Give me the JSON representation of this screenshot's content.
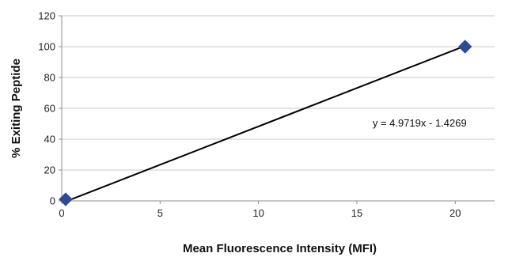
{
  "chart_data": {
    "type": "scatter",
    "title": "",
    "xlabel": "Mean Fluorescence Intensity (MFI)",
    "ylabel": "% Exiting Peptide",
    "xlim": [
      0,
      22
    ],
    "ylim": [
      0,
      120
    ],
    "x_ticks": [
      "0",
      "5",
      "10",
      "15",
      "20"
    ],
    "y_ticks": [
      "0",
      "20",
      "40",
      "60",
      "80",
      "100",
      "120"
    ],
    "grid": "horizontal",
    "legend": "none",
    "series": [
      {
        "marker": "diamond",
        "color": "#2e4a94",
        "points": [
          {
            "x": 0.2,
            "y": 1
          },
          {
            "x": 20.5,
            "y": 100
          }
        ]
      }
    ],
    "trendline": {
      "type": "linear",
      "slope": 4.9719,
      "intercept": -1.4269,
      "color": "#000000",
      "equation_label": "y = 4.9719x - 1.4269",
      "label_anchor": {
        "x": 16,
        "y": 60
      }
    }
  }
}
